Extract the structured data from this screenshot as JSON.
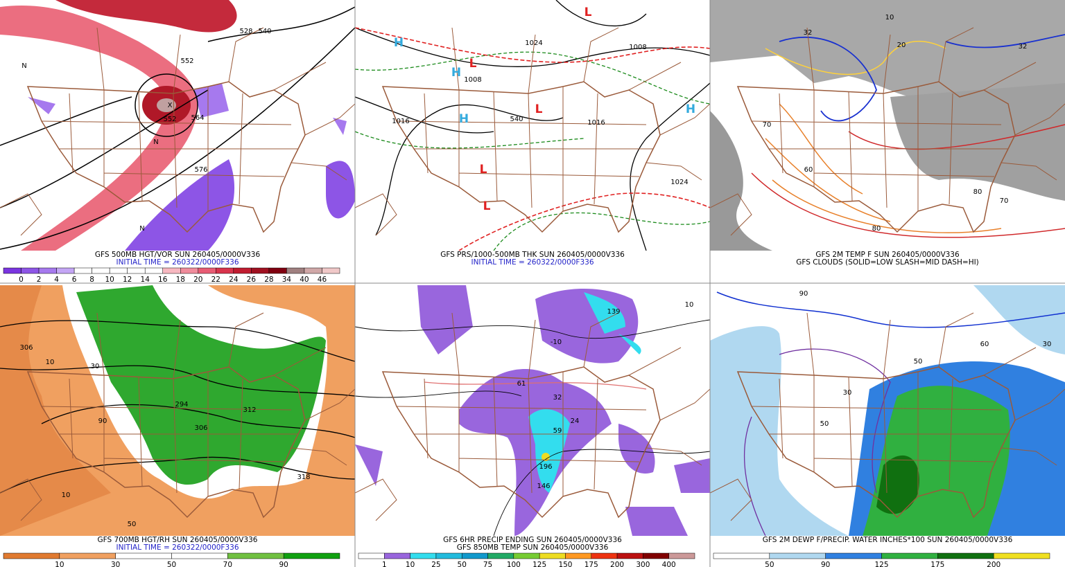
{
  "panels": [
    {
      "captions": [
        {
          "text": "GFS 500MB HGT/VOR SUN 260405/0000V336",
          "color": "#000000"
        },
        {
          "text": "INITIAL TIME = 260322/0000F336",
          "color": "#2222c8"
        }
      ],
      "colorbar": {
        "labels": [
          0,
          2,
          4,
          6,
          8,
          10,
          12,
          14,
          16,
          18,
          20,
          22,
          24,
          26,
          28,
          34,
          40,
          46
        ],
        "colors": [
          "#7a35e0",
          "#8d55e6",
          "#a679ee",
          "#c4a6f5",
          "#ffffff",
          "#ffffff",
          "#ffffff",
          "#ffffff",
          "#ffffff",
          "#f7b8c0",
          "#f08c9c",
          "#e85c74",
          "#d8344c",
          "#c01c30",
          "#a01020",
          "#800010",
          "#a08080",
          "#d0a8a8",
          "#f0c8c8"
        ]
      },
      "map_labels": [
        {
          "text": "528"
        },
        {
          "text": "540"
        },
        {
          "text": "552"
        },
        {
          "text": "552"
        },
        {
          "text": "564"
        },
        {
          "text": "576"
        },
        {
          "text": "X"
        },
        {
          "text": "N"
        },
        {
          "text": "N"
        },
        {
          "text": "N"
        }
      ]
    },
    {
      "captions": [
        {
          "text": "GFS PRS/1000-500MB THK SUN 260405/0000V336",
          "color": "#000000"
        },
        {
          "text": "INITIAL TIME = 260322/0000F336",
          "color": "#2222c8"
        }
      ],
      "map_labels": [
        {
          "text": "1024"
        },
        {
          "text": "1008"
        },
        {
          "text": "1016"
        },
        {
          "text": "1016"
        },
        {
          "text": "1024"
        },
        {
          "text": "1008"
        },
        {
          "text": "540"
        },
        {
          "text": "H",
          "color": "#33aadd"
        },
        {
          "text": "H",
          "color": "#33aadd"
        },
        {
          "text": "H",
          "color": "#33aadd"
        },
        {
          "text": "H",
          "color": "#33aadd"
        },
        {
          "text": "L",
          "color": "#e02020"
        },
        {
          "text": "L",
          "color": "#e02020"
        },
        {
          "text": "L",
          "color": "#e02020"
        },
        {
          "text": "L",
          "color": "#e02020"
        },
        {
          "text": "L",
          "color": "#e02020"
        }
      ]
    },
    {
      "captions": [
        {
          "text": "GFS 2M TEMP F SUN 260405/0000V336",
          "color": "#000000"
        },
        {
          "text": "GFS CLOUDS (SOLID=LOW SLASH=MID DASH=HI)",
          "color": "#000000"
        }
      ],
      "map_labels": [
        {
          "text": "32"
        },
        {
          "text": "32"
        },
        {
          "text": "20"
        },
        {
          "text": "10"
        },
        {
          "text": "70"
        },
        {
          "text": "80"
        },
        {
          "text": "80"
        },
        {
          "text": "70"
        },
        {
          "text": "60"
        }
      ]
    },
    {
      "captions": [
        {
          "text": "GFS 700MB HGT/RH SUN 260405/0000V336",
          "color": "#000000"
        },
        {
          "text": "INITIAL TIME = 260322/0000F336",
          "color": "#2222c8"
        }
      ],
      "colorbar": {
        "labels": [
          10,
          30,
          50,
          70,
          90
        ],
        "colors": [
          "#e07a30",
          "#f0a060",
          "#ffffff",
          "#ffffff",
          "#70c040",
          "#10a010"
        ]
      },
      "map_labels": [
        {
          "text": "306"
        },
        {
          "text": "294"
        },
        {
          "text": "312"
        },
        {
          "text": "306"
        },
        {
          "text": "318"
        },
        {
          "text": "10"
        },
        {
          "text": "10"
        },
        {
          "text": "50"
        },
        {
          "text": "90"
        },
        {
          "text": "30"
        }
      ]
    },
    {
      "captions": [
        {
          "text": "GFS 6HR PRECIP ENDING SUN 260405/0000V336",
          "color": "#000000"
        },
        {
          "text": "GFS 850MB TEMP SUN 260405/0000V336",
          "color": "#000000"
        }
      ],
      "colorbar": {
        "labels": [
          1,
          10,
          25,
          50,
          75,
          100,
          125,
          150,
          175,
          200,
          300,
          400
        ],
        "colors": [
          "#ffffff",
          "#9966dd",
          "#33ddee",
          "#22bbdd",
          "#1199cc",
          "#22aa66",
          "#77cc33",
          "#eedd22",
          "#ff9922",
          "#ee3311",
          "#bb1111",
          "#800000",
          "#cc9999"
        ]
      },
      "map_labels": [
        {
          "text": "61"
        },
        {
          "text": "32"
        },
        {
          "text": "24"
        },
        {
          "text": "59"
        },
        {
          "text": "196"
        },
        {
          "text": "146"
        },
        {
          "text": "139"
        },
        {
          "text": "-10"
        },
        {
          "text": "10"
        }
      ]
    },
    {
      "captions": [
        {
          "text": "GFS 2M DEWP F/PRECIP. WATER INCHES*100 SUN 260405/0000V336",
          "color": "#000000"
        }
      ],
      "colorbar": {
        "labels": [
          50,
          90,
          125,
          175,
          200
        ],
        "colors": [
          "#ffffff",
          "#b0d8f0",
          "#3080e0",
          "#30b040",
          "#107010",
          "#f0e020"
        ]
      },
      "map_labels": [
        {
          "text": "30"
        },
        {
          "text": "50"
        },
        {
          "text": "50"
        },
        {
          "text": "30"
        },
        {
          "text": "60"
        },
        {
          "text": "90"
        }
      ]
    }
  ]
}
